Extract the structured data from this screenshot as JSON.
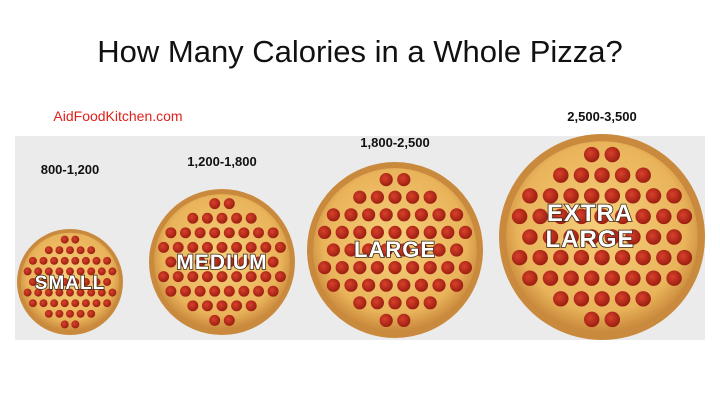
{
  "header": {
    "title": "How Many Calories in a Whole Pizza?",
    "source": "AidFoodKitchen.com"
  },
  "pizzas": [
    {
      "size_lines": [
        "SMALL"
      ],
      "calories": "800-1,200"
    },
    {
      "size_lines": [
        "MEDIUM"
      ],
      "calories": "1,200-1,800"
    },
    {
      "size_lines": [
        "LARGE"
      ],
      "calories": "1,800-2,500"
    },
    {
      "size_lines": [
        "EXTRA",
        "LARGE"
      ],
      "calories": "2,500-3,500"
    }
  ]
}
